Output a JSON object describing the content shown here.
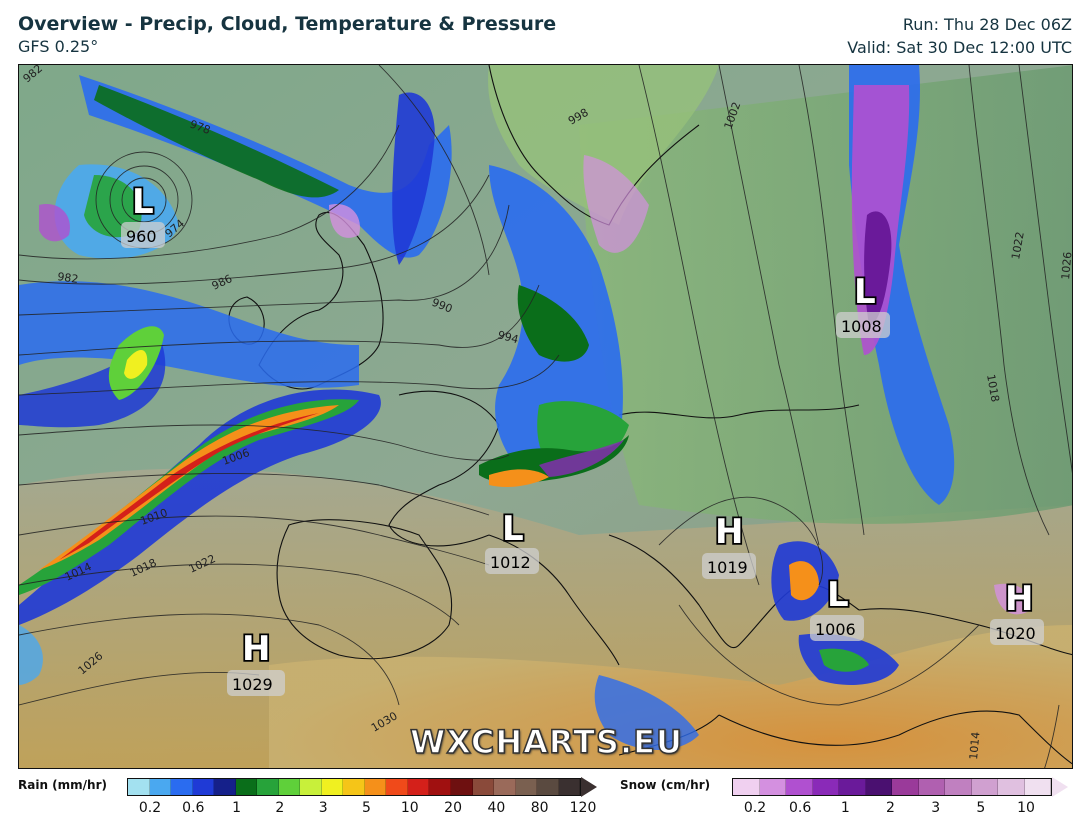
{
  "header": {
    "title": "Overview - Precip, Cloud, Temperature & Pressure",
    "model": "GFS 0.25°",
    "run": "Run: Thu 28 Dec 06Z",
    "valid": "Valid: Sat 30 Dec 12:00 UTC"
  },
  "map": {
    "watermark": "WXCHARTS.EU",
    "pressure_centers": [
      {
        "type": "L",
        "value": "960"
      },
      {
        "type": "L",
        "value": "1008"
      },
      {
        "type": "L",
        "value": "1012"
      },
      {
        "type": "H",
        "value": "1019"
      },
      {
        "type": "L",
        "value": "1006"
      },
      {
        "type": "H",
        "value": "1020"
      },
      {
        "type": "H",
        "value": "1029"
      }
    ],
    "isobar_labels": [
      "982",
      "978",
      "974",
      "982",
      "986",
      "990",
      "994",
      "998",
      "1002",
      "1006",
      "1010",
      "1014",
      "1018",
      "1022",
      "1026",
      "1030",
      "1018",
      "1022",
      "1026",
      "1014"
    ]
  },
  "legend": {
    "rain": {
      "title": "Rain (mm/hr)",
      "ticks": [
        "0.2",
        "0.6",
        "1",
        "2",
        "3",
        "5",
        "10",
        "20",
        "40",
        "80",
        "120"
      ],
      "colors": [
        "#a3e1f0",
        "#4aa8f0",
        "#2a6cf0",
        "#1f3ad6",
        "#15208a",
        "#0a6e1a",
        "#27a33a",
        "#5fd03a",
        "#c8f03a",
        "#f0f020",
        "#f5c518",
        "#f5901a",
        "#f04a1a",
        "#d4201a",
        "#a01010",
        "#6e1010",
        "#8a4a3a",
        "#9a6a5a",
        "#7a6050",
        "#5a4a40",
        "#3a3030"
      ]
    },
    "snow": {
      "title": "Snow (cm/hr)",
      "ticks": [
        "0.2",
        "0.6",
        "1",
        "2",
        "3",
        "5",
        "10"
      ],
      "colors": [
        "#f0d0f0",
        "#d490e0",
        "#b050d0",
        "#8a2ab8",
        "#6a1a9a",
        "#4a1070",
        "#9a3a9a",
        "#b060b0",
        "#c080c0",
        "#d0a0d0",
        "#e0c0e0",
        "#f0e0f0"
      ]
    }
  }
}
